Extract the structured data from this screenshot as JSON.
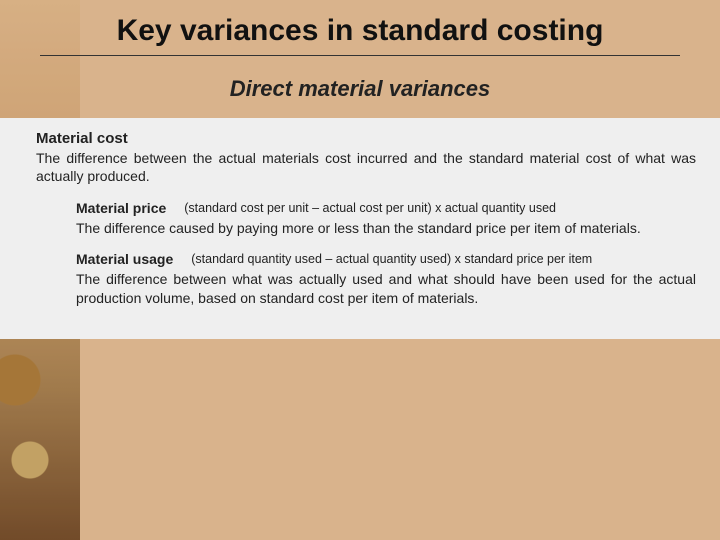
{
  "colors": {
    "slide_bg": "#d9b38c",
    "panel_bg": "#efefef",
    "title_color": "#111111",
    "text_color": "#222222",
    "divider_color": "#333333"
  },
  "title": "Key variances in standard costing",
  "subtitle": "Direct material variances",
  "sections": {
    "material_cost": {
      "heading": "Material cost",
      "body": "The difference between the actual materials cost incurred and the standard material cost of what was actually produced."
    },
    "material_price": {
      "heading": "Material price",
      "formula": "(standard cost per unit – actual cost per unit) x actual quantity used",
      "body": "The difference caused by paying more or less than the standard price per item of materials."
    },
    "material_usage": {
      "heading": "Material usage",
      "formula": "(standard quantity used – actual quantity used) x standard price per item",
      "body": "The difference between what was actually used and what should have been used for the actual production volume, based on standard cost per item of materials."
    }
  },
  "typography": {
    "title_fontsize": 30,
    "subtitle_fontsize": 22,
    "heading_fontsize": 15,
    "body_fontsize": 14,
    "formula_fontsize": 12.5,
    "font_family": "Verdana"
  }
}
